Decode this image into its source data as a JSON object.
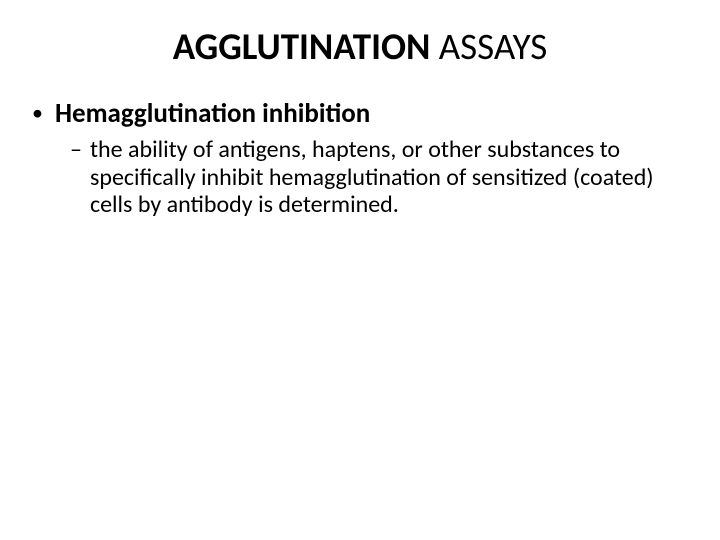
{
  "title": {
    "bold_part": "AGGLUTINATION",
    "normal_part": " ASSAYS",
    "font_size_pt": 37,
    "color": "#000000"
  },
  "bullet1": {
    "marker": "•",
    "text": "Hemagglutination inhibition",
    "font_size_pt": 27,
    "font_weight": "700",
    "color": "#000000"
  },
  "bullet2": {
    "marker": "–",
    "text": "the ability of antigens, haptens, or other substances to specifically inhibit hemagglutination of sensitized (coated) cells by antibody is determined.",
    "font_size_pt": 24,
    "font_weight": "400",
    "color": "#000000"
  },
  "background_color": "#ffffff"
}
